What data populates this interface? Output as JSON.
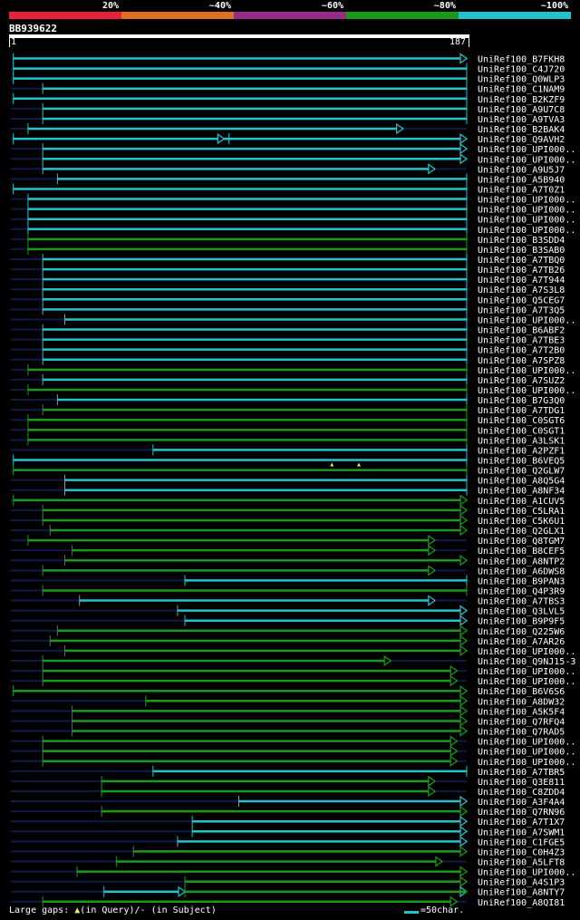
{
  "legend": [
    {
      "label": "20%",
      "color": "#e8203a"
    },
    {
      "label": "~40%",
      "color": "#e07020"
    },
    {
      "label": "~60%",
      "color": "#9a2a8a"
    },
    {
      "label": "~80%",
      "color": "#1a9a1a"
    },
    {
      "label": "~100%",
      "color": "#22c4cc"
    }
  ],
  "query": {
    "id": "BB939622",
    "start": "1",
    "end": "187",
    "length": 187
  },
  "footer": {
    "gaps_prefix": "Large gaps:",
    "gaps_query": "(in Query)/",
    "gaps_subject": "- (in Subject)",
    "scale": "=50char."
  },
  "colors": {
    "cyan": "#22c4cc",
    "green": "#1a9a1a",
    "dark": "#101a4a",
    "gap_marker": "#e8e870"
  },
  "hits": [
    {
      "name": "UniRef100_B7FKH8",
      "start": 2,
      "end": 187,
      "color": "cyan",
      "arrow": true
    },
    {
      "name": "UniRef100_C4J720",
      "start": 2,
      "end": 187,
      "color": "cyan",
      "arrow": false
    },
    {
      "name": "UniRef100_Q0WLP3",
      "start": 2,
      "end": 187,
      "color": "cyan",
      "arrow": false
    },
    {
      "name": "UniRef100_C1NAM9",
      "start": 14,
      "end": 187,
      "color": "cyan",
      "arrow": false
    },
    {
      "name": "UniRef100_B2KZF9",
      "start": 2,
      "end": 187,
      "color": "cyan",
      "arrow": false
    },
    {
      "name": "UniRef100_A9U7C8",
      "start": 14,
      "end": 187,
      "color": "cyan",
      "arrow": false
    },
    {
      "name": "UniRef100_A9TVA3",
      "start": 14,
      "end": 187,
      "color": "cyan",
      "arrow": false
    },
    {
      "name": "UniRef100_B2BAK4",
      "start": 8,
      "end": 161,
      "color": "cyan",
      "arrow": true
    },
    {
      "name": "UniRef100_Q9AVH2",
      "start": 2,
      "end": 187,
      "color": "cyan",
      "arrow": true,
      "mid": [
        88,
        90
      ]
    },
    {
      "name": "UniRef100_UPI000..",
      "start": 14,
      "end": 187,
      "color": "cyan",
      "arrow": true
    },
    {
      "name": "UniRef100_UPI000..",
      "start": 14,
      "end": 187,
      "color": "cyan",
      "arrow": true
    },
    {
      "name": "UniRef100_A9U5J7",
      "start": 14,
      "end": 174,
      "color": "cyan",
      "arrow": true
    },
    {
      "name": "UniRef100_A5B940",
      "start": 20,
      "end": 187,
      "color": "cyan",
      "arrow": false
    },
    {
      "name": "UniRef100_A7T0Z1",
      "start": 2,
      "end": 187,
      "color": "cyan",
      "arrow": false
    },
    {
      "name": "UniRef100_UPI000..",
      "start": 8,
      "end": 187,
      "color": "cyan",
      "arrow": false
    },
    {
      "name": "UniRef100_UPI000..",
      "start": 8,
      "end": 187,
      "color": "cyan",
      "arrow": false
    },
    {
      "name": "UniRef100_UPI000..",
      "start": 8,
      "end": 187,
      "color": "cyan",
      "arrow": false
    },
    {
      "name": "UniRef100_UPI000..",
      "start": 8,
      "end": 187,
      "color": "cyan",
      "arrow": false
    },
    {
      "name": "UniRef100_B3SDD4",
      "start": 8,
      "end": 187,
      "color": "green",
      "arrow": false
    },
    {
      "name": "UniRef100_B3SAB0",
      "start": 8,
      "end": 187,
      "color": "green",
      "arrow": false
    },
    {
      "name": "UniRef100_A7TBQ0",
      "start": 14,
      "end": 187,
      "color": "cyan",
      "arrow": false
    },
    {
      "name": "UniRef100_A7TB26",
      "start": 14,
      "end": 187,
      "color": "cyan",
      "arrow": false
    },
    {
      "name": "UniRef100_A7T944",
      "start": 14,
      "end": 187,
      "color": "cyan",
      "arrow": false
    },
    {
      "name": "UniRef100_A7S3L8",
      "start": 14,
      "end": 187,
      "color": "cyan",
      "arrow": false
    },
    {
      "name": "UniRef100_Q5CEG7",
      "start": 14,
      "end": 187,
      "color": "cyan",
      "arrow": false
    },
    {
      "name": "UniRef100_A7T3Q5",
      "start": 14,
      "end": 187,
      "color": "cyan",
      "arrow": false
    },
    {
      "name": "UniRef100_UPI000..",
      "start": 23,
      "end": 187,
      "color": "cyan",
      "arrow": false
    },
    {
      "name": "UniRef100_B6ABF2",
      "start": 14,
      "end": 187,
      "color": "cyan",
      "arrow": false
    },
    {
      "name": "UniRef100_A7TBE3",
      "start": 14,
      "end": 187,
      "color": "cyan",
      "arrow": false
    },
    {
      "name": "UniRef100_A7T2B0",
      "start": 14,
      "end": 187,
      "color": "cyan",
      "arrow": false
    },
    {
      "name": "UniRef100_A7SPZ8",
      "start": 14,
      "end": 187,
      "color": "cyan",
      "arrow": false
    },
    {
      "name": "UniRef100_UPI000..",
      "start": 8,
      "end": 187,
      "color": "green",
      "arrow": false
    },
    {
      "name": "UniRef100_A7SUZ2",
      "start": 14,
      "end": 187,
      "color": "cyan",
      "arrow": false
    },
    {
      "name": "UniRef100_UPI000..",
      "start": 8,
      "end": 187,
      "color": "green",
      "arrow": false
    },
    {
      "name": "UniRef100_B7G3Q0",
      "start": 20,
      "end": 187,
      "color": "cyan",
      "arrow": false
    },
    {
      "name": "UniRef100_A7TDG1",
      "start": 14,
      "end": 187,
      "color": "green",
      "arrow": false
    },
    {
      "name": "UniRef100_C0SGT6",
      "start": 8,
      "end": 187,
      "color": "green",
      "arrow": false
    },
    {
      "name": "UniRef100_C0SGT1",
      "start": 8,
      "end": 187,
      "color": "green",
      "arrow": false
    },
    {
      "name": "UniRef100_A3LSK1",
      "start": 8,
      "end": 187,
      "color": "green",
      "arrow": false
    },
    {
      "name": "UniRef100_A2PZF1",
      "start": 59,
      "end": 187,
      "color": "cyan",
      "arrow": false
    },
    {
      "name": "UniRef100_B6VEQ5",
      "start": 2,
      "end": 187,
      "color": "cyan",
      "arrow": false,
      "gaps": [
        132,
        143
      ]
    },
    {
      "name": "UniRef100_Q2GLW7",
      "start": 2,
      "end": 187,
      "color": "green",
      "arrow": false
    },
    {
      "name": "UniRef100_A8Q5G4",
      "start": 23,
      "end": 187,
      "color": "cyan",
      "arrow": false
    },
    {
      "name": "UniRef100_A8NF34",
      "start": 23,
      "end": 187,
      "color": "cyan",
      "arrow": false
    },
    {
      "name": "UniRef100_A1CUV5",
      "start": 2,
      "end": 187,
      "color": "green",
      "arrow": true
    },
    {
      "name": "UniRef100_C5LRA1",
      "start": 14,
      "end": 187,
      "color": "green",
      "arrow": true
    },
    {
      "name": "UniRef100_C5K6U1",
      "start": 14,
      "end": 187,
      "color": "green",
      "arrow": true
    },
    {
      "name": "UniRef100_Q2GLX1",
      "start": 17,
      "end": 187,
      "color": "green",
      "arrow": true
    },
    {
      "name": "UniRef100_Q8TGM7",
      "start": 8,
      "end": 174,
      "color": "green",
      "arrow": true
    },
    {
      "name": "UniRef100_B8CEF5",
      "start": 26,
      "end": 174,
      "color": "green",
      "arrow": true
    },
    {
      "name": "UniRef100_A8NTP2",
      "start": 23,
      "end": 187,
      "color": "green",
      "arrow": true
    },
    {
      "name": "UniRef100_A6DWS8",
      "start": 14,
      "end": 174,
      "color": "green",
      "arrow": true
    },
    {
      "name": "UniRef100_B9PAN3",
      "start": 72,
      "end": 187,
      "color": "cyan",
      "arrow": false
    },
    {
      "name": "UniRef100_Q4P3R9",
      "start": 14,
      "end": 187,
      "color": "green",
      "arrow": false
    },
    {
      "name": "UniRef100_A7TBS3",
      "start": 29,
      "end": 174,
      "color": "cyan",
      "arrow": true
    },
    {
      "name": "UniRef100_Q3LVL5",
      "start": 69,
      "end": 187,
      "color": "cyan",
      "arrow": true
    },
    {
      "name": "UniRef100_B9P9F5",
      "start": 72,
      "end": 187,
      "color": "cyan",
      "arrow": true
    },
    {
      "name": "UniRef100_Q225W6",
      "start": 20,
      "end": 187,
      "color": "green",
      "arrow": true
    },
    {
      "name": "UniRef100_A7AR26",
      "start": 17,
      "end": 187,
      "color": "green",
      "arrow": true
    },
    {
      "name": "UniRef100_UPI000..",
      "start": 23,
      "end": 187,
      "color": "green",
      "arrow": true
    },
    {
      "name": "UniRef100_Q9NJ15-3",
      "start": 14,
      "end": 156,
      "color": "green",
      "arrow": true
    },
    {
      "name": "UniRef100_UPI000..",
      "start": 14,
      "end": 183,
      "color": "green",
      "arrow": true
    },
    {
      "name": "UniRef100_UPI000..",
      "start": 14,
      "end": 183,
      "color": "green",
      "arrow": true
    },
    {
      "name": "UniRef100_B6V6S6",
      "start": 2,
      "end": 187,
      "color": "green",
      "arrow": true
    },
    {
      "name": "UniRef100_A8DW32",
      "start": 56,
      "end": 187,
      "color": "green",
      "arrow": true
    },
    {
      "name": "UniRef100_A5K5F4",
      "start": 26,
      "end": 187,
      "color": "green",
      "arrow": true
    },
    {
      "name": "UniRef100_Q7RFQ4",
      "start": 26,
      "end": 187,
      "color": "green",
      "arrow": true
    },
    {
      "name": "UniRef100_Q7RAD5",
      "start": 26,
      "end": 187,
      "color": "green",
      "arrow": true
    },
    {
      "name": "UniRef100_UPI000..",
      "start": 14,
      "end": 183,
      "color": "green",
      "arrow": true
    },
    {
      "name": "UniRef100_UPI000..",
      "start": 14,
      "end": 183,
      "color": "green",
      "arrow": true
    },
    {
      "name": "UniRef100_UPI000..",
      "start": 14,
      "end": 183,
      "color": "green",
      "arrow": true
    },
    {
      "name": "UniRef100_A7TBR5",
      "start": 59,
      "end": 187,
      "color": "cyan",
      "arrow": false
    },
    {
      "name": "UniRef100_Q3E811",
      "start": 38,
      "end": 174,
      "color": "green",
      "arrow": true
    },
    {
      "name": "UniRef100_C8ZDD4",
      "start": 38,
      "end": 174,
      "color": "green",
      "arrow": true
    },
    {
      "name": "UniRef100_A3F4A4",
      "start": 94,
      "end": 187,
      "color": "cyan",
      "arrow": true
    },
    {
      "name": "UniRef100_Q7RN96",
      "start": 38,
      "end": 187,
      "color": "green",
      "arrow": true
    },
    {
      "name": "UniRef100_A7T1X7",
      "start": 75,
      "end": 187,
      "color": "cyan",
      "arrow": true
    },
    {
      "name": "UniRef100_A7SWM1",
      "start": 75,
      "end": 187,
      "color": "cyan",
      "arrow": true
    },
    {
      "name": "UniRef100_C1FGE5",
      "start": 69,
      "end": 187,
      "color": "cyan",
      "arrow": true
    },
    {
      "name": "UniRef100_C0H4Z3",
      "start": 51,
      "end": 187,
      "color": "green",
      "arrow": true
    },
    {
      "name": "UniRef100_A5LFT8",
      "start": 44,
      "end": 177,
      "color": "green",
      "arrow": true
    },
    {
      "name": "UniRef100_UPI000..",
      "start": 28,
      "end": 187,
      "color": "green",
      "arrow": true
    },
    {
      "name": "UniRef100_A4S1P3",
      "start": 72,
      "end": 187,
      "color": "green",
      "arrow": true
    },
    {
      "name": "UniRef100_A8NTY7",
      "start": 39,
      "end": 187,
      "color": "cyan",
      "arrow": true,
      "seg2": [
        72,
        187,
        "green"
      ]
    },
    {
      "name": "UniRef100_A8QI81",
      "start": 14,
      "end": 183,
      "color": "green",
      "arrow": true
    }
  ]
}
